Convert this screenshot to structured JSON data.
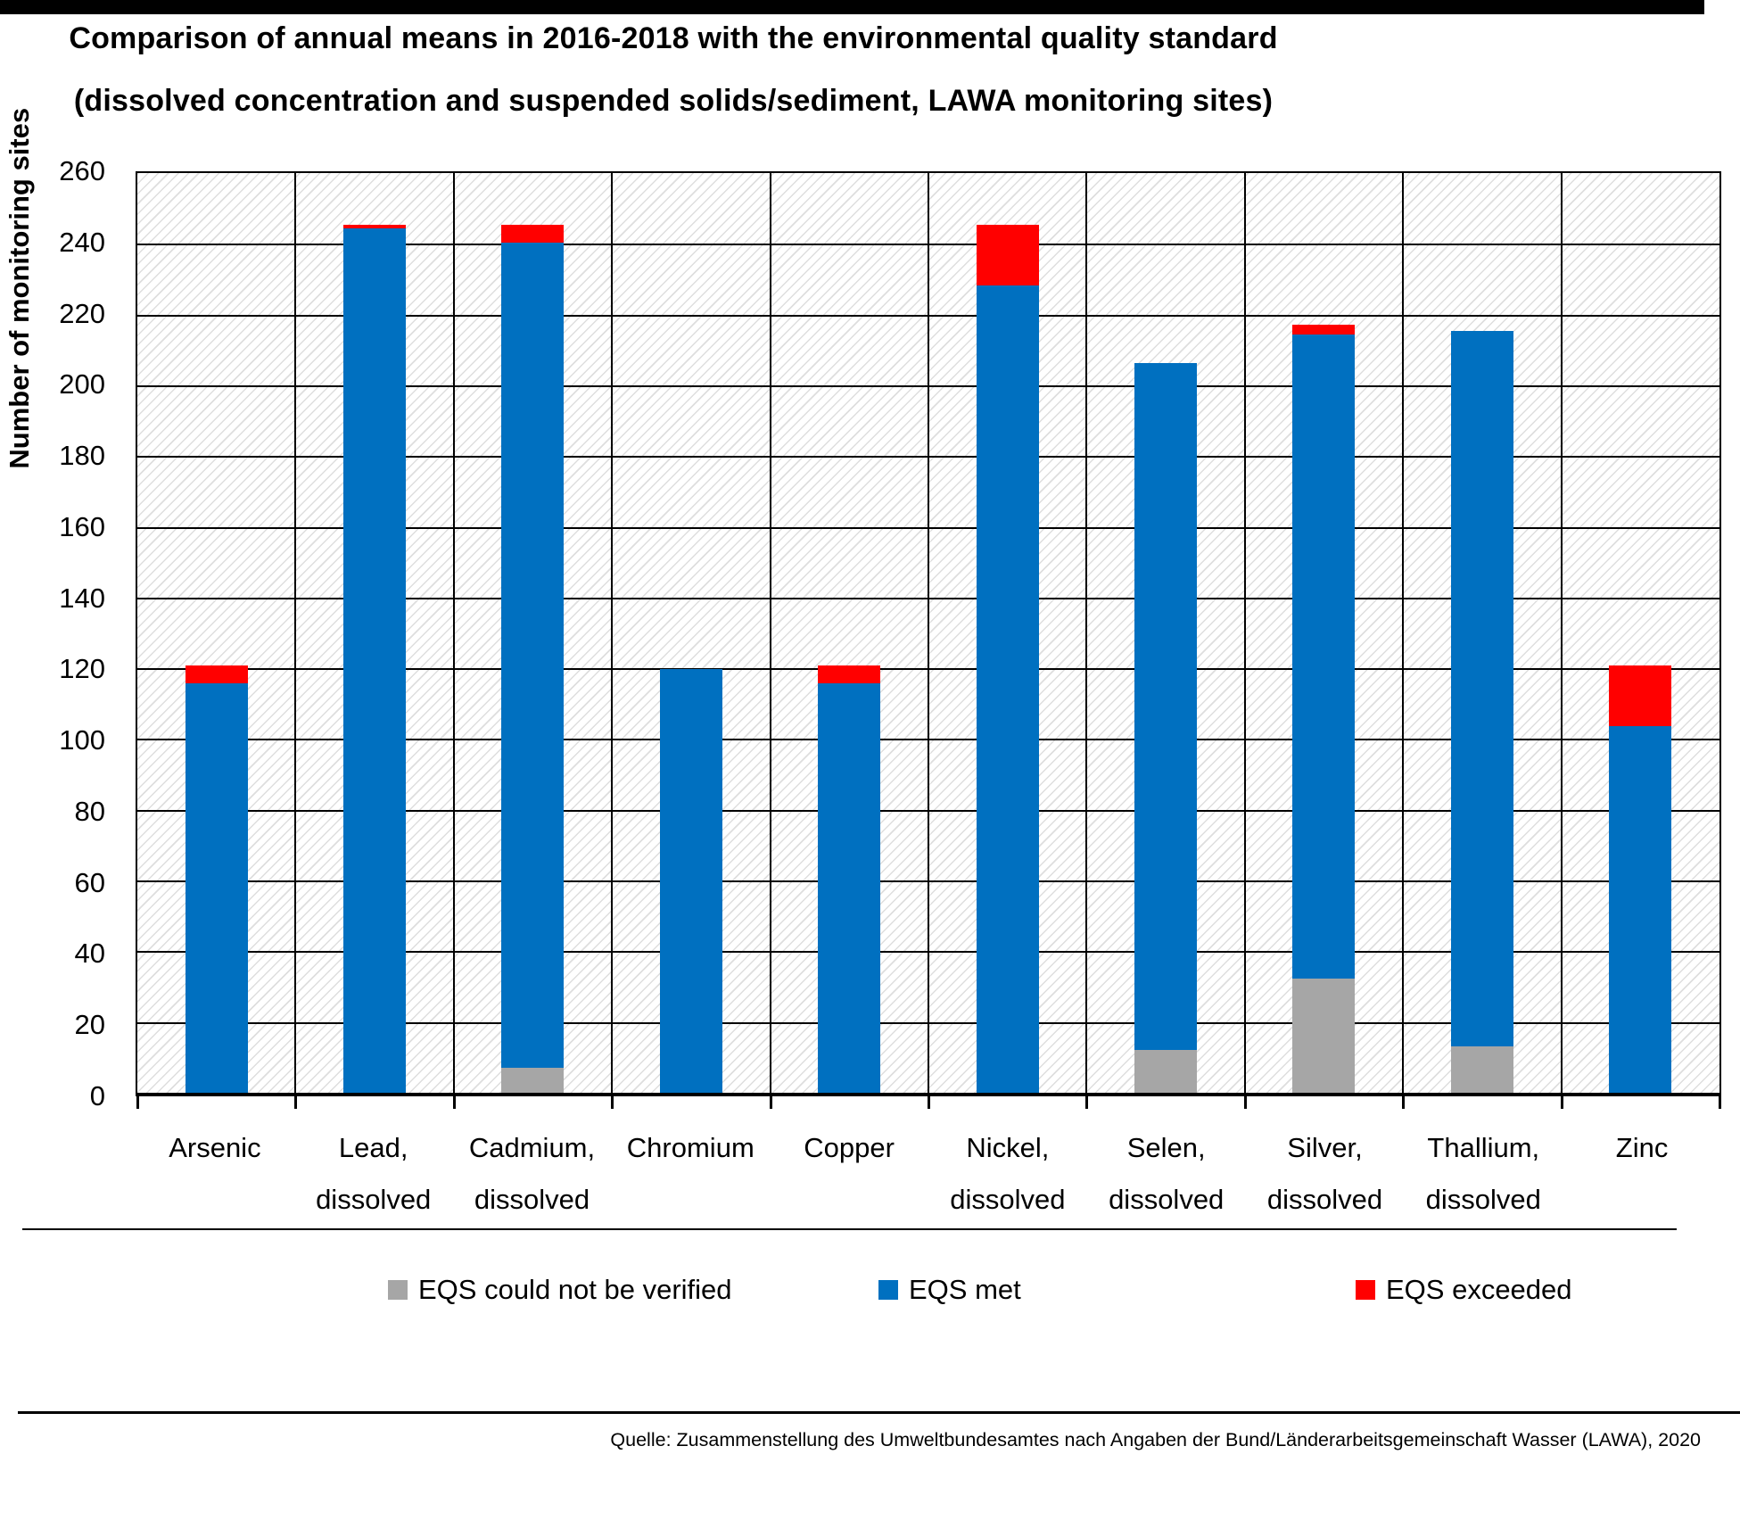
{
  "title": {
    "line1": "Comparison of annual means in 2016-2018 with the environmental quality standard",
    "line2": "(dissolved concentration and suspended solids/sediment, LAWA monitoring sites)"
  },
  "source": "Quelle: Zusammenstellung des Umweltbundesamtes nach Angaben der Bund/Länderarbeitsgemeinschaft Wasser (LAWA), 2020",
  "chart_data": {
    "type": "bar",
    "subtype": "stacked",
    "title": "Comparison of annual means in 2016-2018 with the environmental quality standard (dissolved concentration and suspended solids/sediment, LAWA monitoring sites)",
    "categories": [
      [
        "Arsenic"
      ],
      [
        "Lead,",
        "dissolved"
      ],
      [
        "Cadmium,",
        "dissolved"
      ],
      [
        "Chromium"
      ],
      [
        "Copper"
      ],
      [
        "Nickel,",
        "dissolved"
      ],
      [
        "Selen,",
        "dissolved"
      ],
      [
        "Silver,",
        "dissolved"
      ],
      [
        "Thallium,",
        "dissolved"
      ],
      [
        "Zinc"
      ]
    ],
    "series": [
      {
        "name": "EQS could not be verified",
        "color": "#A6A6A6",
        "values": [
          0,
          0,
          7,
          0,
          0,
          0,
          12,
          32,
          13,
          0
        ]
      },
      {
        "name": "EQS met",
        "color": "#0070C0",
        "values": [
          115,
          243,
          232,
          119,
          115,
          227,
          193,
          181,
          201,
          103
        ]
      },
      {
        "name": "EQS exceeded",
        "color": "#FF0000",
        "values": [
          5,
          1,
          5,
          0,
          5,
          17,
          0,
          3,
          0,
          17
        ]
      }
    ],
    "stack_totals": [
      120,
      244,
      244,
      119,
      120,
      244,
      205,
      216,
      214,
      120
    ],
    "xlabel": "",
    "ylabel": "Number of monitoring sites",
    "ylim": [
      0,
      260
    ],
    "ytick_step": 20,
    "grid": "horizontal major + vertical category boundaries, hatched plot background",
    "legend_position": "bottom"
  }
}
